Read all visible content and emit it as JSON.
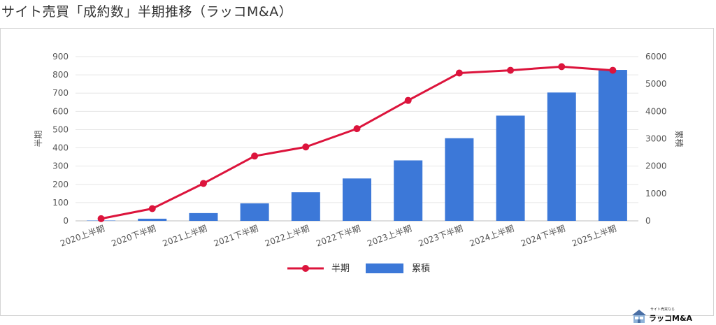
{
  "page": {
    "title": "サイト売買「成約数」半期推移（ラッコM&A）"
  },
  "logo": {
    "tagline": "サイト売買なら",
    "name": "ラッコM&A"
  },
  "colors": {
    "bar": "#3c78d8",
    "line": "#dc143c",
    "grid": "#e6e6e6",
    "axis_text": "#555555"
  },
  "chart_data": {
    "type": "bar",
    "title": "",
    "categories": [
      "2020上半期",
      "2020下半期",
      "2021上半期",
      "2021下半期",
      "2022上半期",
      "2022下半期",
      "2023上半期",
      "2023下半期",
      "2024上半期",
      "2024下半期",
      "2025上半期"
    ],
    "series": [
      {
        "name": "半期",
        "chart_type": "line",
        "axis": "left",
        "values": [
          12,
          67,
          205,
          355,
          405,
          505,
          660,
          810,
          825,
          845,
          825
        ]
      },
      {
        "name": "累積",
        "chart_type": "bar",
        "axis": "right",
        "values": [
          12,
          79,
          284,
          639,
          1044,
          1549,
          2209,
          3019,
          3844,
          4689,
          5514
        ]
      }
    ],
    "ylabel": "半期",
    "y2label": "累積",
    "ylim": [
      0,
      900
    ],
    "y2lim": [
      0,
      6000
    ],
    "yticks": [
      "0",
      "100",
      "200",
      "300",
      "400",
      "500",
      "600",
      "700",
      "800",
      "900"
    ],
    "y2ticks": [
      "0",
      "1000",
      "2000",
      "3000",
      "4000",
      "5000",
      "6000"
    ],
    "grid": true,
    "legend": "bottom"
  }
}
